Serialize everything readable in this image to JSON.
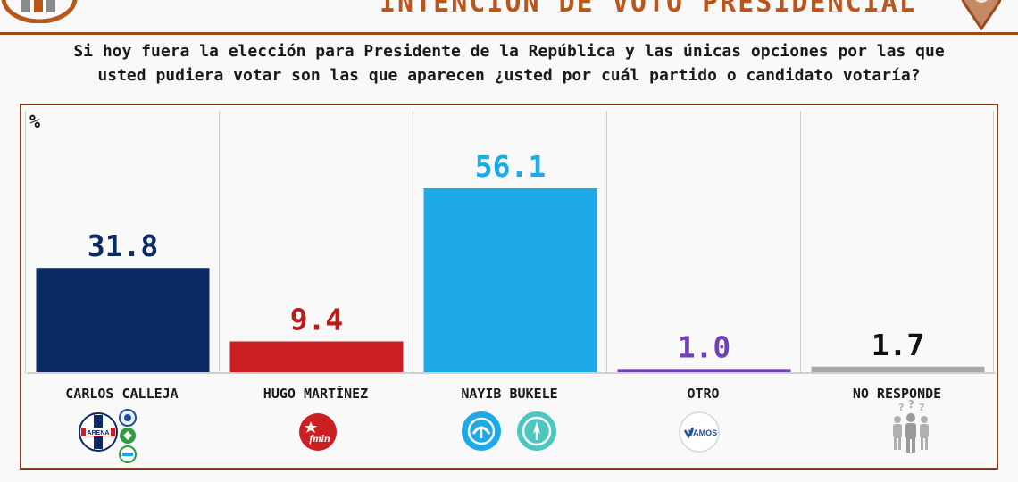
{
  "header": {
    "title": "INTENCIÓN DE VOTO PRESIDENCIAL"
  },
  "question": {
    "line1": "Si hoy fuera la elección para Presidente de la República y las únicas opciones por las que",
    "line2": "usted pudiera votar son las que aparecen ¿usted por cuál partido o candidato votaría?"
  },
  "chart_data": {
    "type": "bar",
    "ylabel": "%",
    "ylim": [
      0,
      60
    ],
    "grid": false,
    "categories": [
      "CARLOS CALLEJA",
      "HUGO MARTÍNEZ",
      "NAYIB BUKELE",
      "OTRO",
      "NO RESPONDE"
    ],
    "values": [
      31.8,
      9.4,
      56.1,
      1.0,
      1.7
    ],
    "value_labels": [
      "31.8",
      "9.4",
      "56.1",
      "1.0",
      "1.7"
    ],
    "bar_colors": [
      "#0b2a63",
      "#cc1f22",
      "#1ea9e8",
      "#7340b8",
      "#a8a8a8"
    ],
    "label_colors": [
      "#0b2a63",
      "#b71c1c",
      "#1ea9e8",
      "#7340b8",
      "#111111"
    ]
  },
  "logos": {
    "calleja": [
      "arena-icon",
      "pcn-icon",
      "pdc-icon",
      "democracia-salvadorena-icon"
    ],
    "martinez": [
      "fmln-icon"
    ],
    "bukele": [
      "gana-icon",
      "nuevas-ideas-icon"
    ],
    "otro": [
      "vamos-icon"
    ],
    "otro_text": "VAMOS",
    "arena_text": "ARENA",
    "fmln_text": "fmln",
    "no_responde": [
      "people-question-icon"
    ]
  },
  "colors": {
    "accent": "#9c4a1c",
    "title": "#b8561c"
  }
}
